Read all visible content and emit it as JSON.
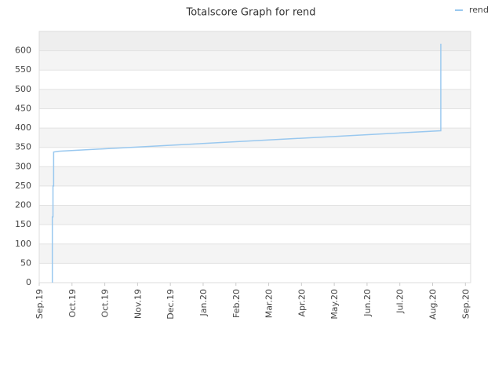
{
  "chart_data": {
    "type": "line",
    "title": "Totalscore Graph for rend",
    "x": [
      0.4,
      0.4,
      0.42,
      0.42,
      0.44,
      0.44,
      0.6,
      12.25,
      12.25
    ],
    "series": [
      {
        "name": "rend",
        "color": "#99c8ef",
        "values": [
          0,
          170,
          170,
          250,
          250,
          338,
          340,
          393,
          618
        ]
      }
    ],
    "xlim": [
      0,
      13.16
    ],
    "xticks": [
      {
        "value": 0,
        "label": "Sep.19"
      },
      {
        "value": 1,
        "label": "Oct.19"
      },
      {
        "value": 2,
        "label": "Oct.19"
      },
      {
        "value": 3,
        "label": "Nov.19"
      },
      {
        "value": 4,
        "label": "Dec.19"
      },
      {
        "value": 5,
        "label": "Jan.20"
      },
      {
        "value": 6,
        "label": "Feb.20"
      },
      {
        "value": 7,
        "label": "Mar.20"
      },
      {
        "value": 8,
        "label": "Apr.20"
      },
      {
        "value": 9,
        "label": "May.20"
      },
      {
        "value": 10,
        "label": "Jun.20"
      },
      {
        "value": 11,
        "label": "Jul.20"
      },
      {
        "value": 12,
        "label": "Aug.20"
      },
      {
        "value": 13,
        "label": "Sep.20"
      }
    ],
    "ylim": [
      0,
      650
    ],
    "yticks": [
      0,
      50,
      100,
      150,
      200,
      250,
      300,
      350,
      400,
      450,
      500,
      550,
      600
    ],
    "grid": true,
    "legend": "top-right"
  }
}
